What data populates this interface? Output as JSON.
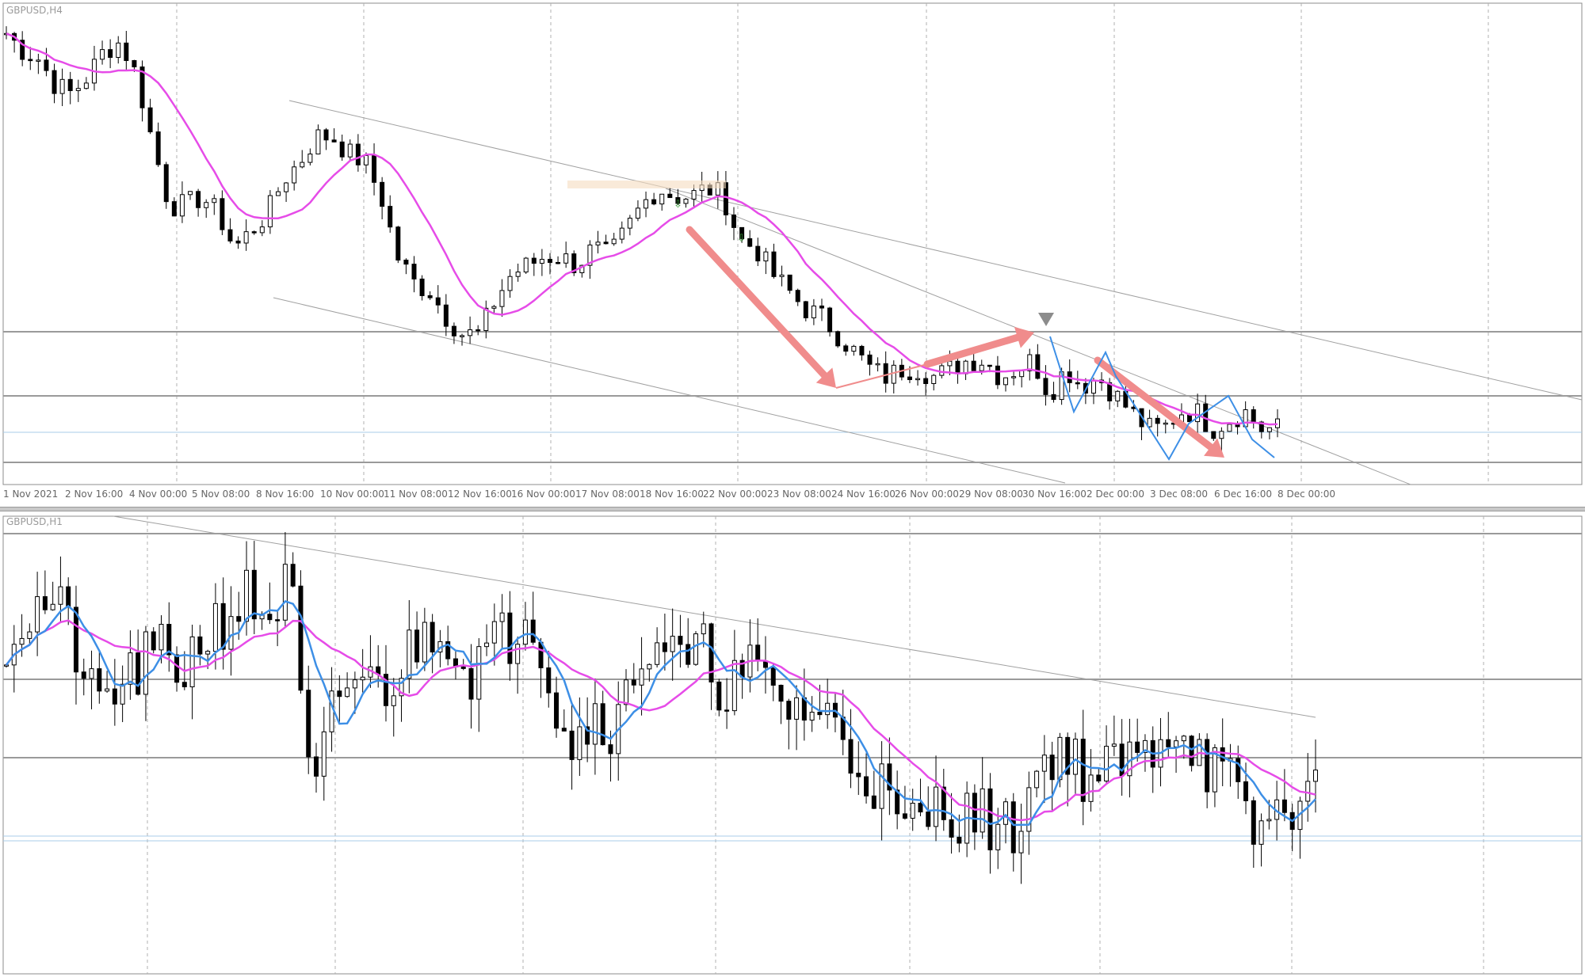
{
  "symbol_top": "GBPUSD,H4",
  "symbol_bottom": "GBPUSD,H1",
  "chart_data": [
    {
      "type": "candlestick",
      "symbol": "GBPUSD,H4",
      "x_tick_labels": [
        "1 Nov 2021",
        "2 Nov 16:00",
        "4 Nov 00:00",
        "5 Nov 08:00",
        "8 Nov 16:00",
        "10 Nov 00:00",
        "11 Nov 08:00",
        "12 Nov 16:00",
        "16 Nov 00:00",
        "17 Nov 08:00",
        "18 Nov 16:00",
        "22 Nov 00:00",
        "23 Nov 08:00",
        "24 Nov 16:00",
        "26 Nov 00:00",
        "29 Nov 08:00",
        "30 Nov 16:00",
        "2 Dec 00:00",
        "3 Dec 08:00",
        "6 Dec 16:00",
        "8 Dec 00:00"
      ],
      "close_path": [
        1.368,
        1.366,
        1.365,
        1.362,
        1.361,
        1.363,
        1.366,
        1.367,
        1.363,
        1.355,
        1.348,
        1.348,
        1.349,
        1.347,
        1.343,
        1.345,
        1.347,
        1.351,
        1.353,
        1.356,
        1.356,
        1.354,
        1.353,
        1.349,
        1.342,
        1.339,
        1.338,
        1.335,
        1.333,
        1.333,
        1.337,
        1.34,
        1.341,
        1.342,
        1.342,
        1.341,
        1.343,
        1.342,
        1.345,
        1.348,
        1.35,
        1.349,
        1.349,
        1.35,
        1.349,
        1.344,
        1.343,
        1.34,
        1.338,
        1.336,
        1.335,
        1.333,
        1.331,
        1.329,
        1.328,
        1.329,
        1.329,
        1.328,
        1.329,
        1.33,
        1.33,
        1.328,
        1.329,
        1.33,
        1.326,
        1.329,
        1.327,
        1.328,
        1.326,
        1.324,
        1.322,
        1.322,
        1.324,
        1.324,
        1.322,
        1.323,
        1.324,
        1.322,
        1.322
      ],
      "ma_magenta": "smooth moving average",
      "horizontal_levels": [
        1.3313,
        1.3262,
        1.3236,
        1.3213
      ]
    },
    {
      "type": "candlestick",
      "symbol": "GBPUSD,H1",
      "close_path": [
        1.329,
        1.33,
        1.331,
        1.329,
        1.325,
        1.326,
        1.327,
        1.328,
        1.327,
        1.329,
        1.33,
        1.331,
        1.33,
        1.332,
        1.319,
        1.325,
        1.327,
        1.326,
        1.327,
        1.329,
        1.33,
        1.327,
        1.328,
        1.329,
        1.331,
        1.326,
        1.323,
        1.325,
        1.324,
        1.328,
        1.329,
        1.327,
        1.328,
        1.326,
        1.327,
        1.326,
        1.325,
        1.325,
        1.324,
        1.322,
        1.321,
        1.318,
        1.319,
        1.32,
        1.319,
        1.319,
        1.318,
        1.321,
        1.323,
        1.322,
        1.321,
        1.322,
        1.322,
        1.324,
        1.324,
        1.322,
        1.321,
        1.318,
        1.319,
        1.32,
        1.32
      ],
      "ma_magenta": "slow moving average",
      "ma_blue": "fast moving average"
    }
  ],
  "colors": {
    "ma_magenta": "#e64ce8",
    "ma_blue": "#3d8fe6",
    "arrow": "#f08c8c",
    "candle": "#000000",
    "grid": "#b0b0b0",
    "level": "#9a9a9a"
  }
}
